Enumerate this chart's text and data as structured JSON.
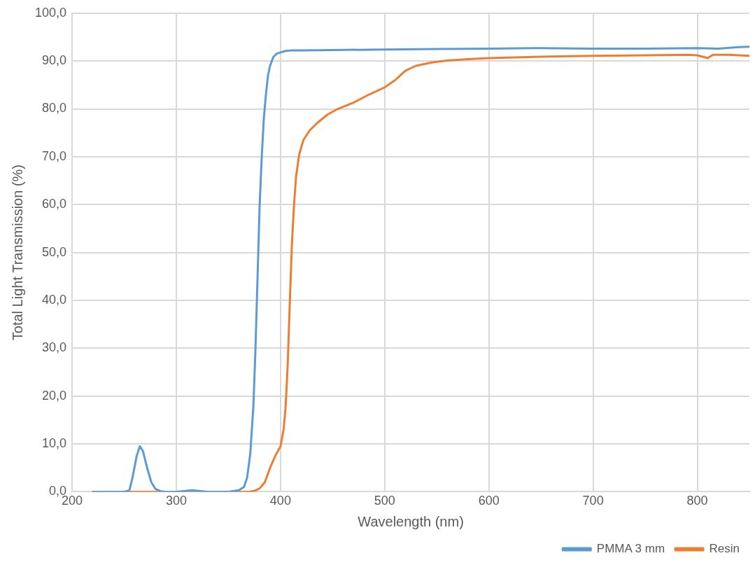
{
  "chart_data": {
    "type": "line",
    "xlabel": "Wavelength (nm)",
    "ylabel": "Total Light Transmission (%)",
    "xlim": [
      200,
      850
    ],
    "xticks": [
      200,
      300,
      400,
      500,
      600,
      700,
      800
    ],
    "ylim": [
      0,
      100
    ],
    "yticks": [
      {
        "value": 0,
        "label": "0,0"
      },
      {
        "value": 10,
        "label": "10,0"
      },
      {
        "value": 20,
        "label": "20,0"
      },
      {
        "value": 30,
        "label": "30,0"
      },
      {
        "value": 40,
        "label": "40,0"
      },
      {
        "value": 50,
        "label": "50,0"
      },
      {
        "value": 60,
        "label": "60,0"
      },
      {
        "value": 70,
        "label": "70,0"
      },
      {
        "value": 80,
        "label": "80,0"
      },
      {
        "value": 90,
        "label": "90,0"
      },
      {
        "value": 100,
        "label": "100,0"
      }
    ],
    "grid": true,
    "legend": "bottom right",
    "marker": "none",
    "line_style": "solid",
    "series": [
      {
        "name": "PMMA 3 mm",
        "color": "#5b9bd5",
        "x": [
          220,
          250,
          255,
          258,
          262,
          265,
          268,
          272,
          276,
          280,
          285,
          290,
          300,
          310,
          315,
          320,
          330,
          340,
          350,
          360,
          365,
          368,
          371,
          374,
          376,
          378,
          380,
          382,
          384,
          386,
          388,
          390,
          393,
          396,
          400,
          405,
          410,
          420,
          450,
          500,
          550,
          600,
          650,
          700,
          750,
          800,
          820,
          840,
          850
        ],
        "values": [
          0,
          0,
          0.3,
          3,
          7.5,
          9.5,
          8.5,
          5,
          2,
          0.6,
          0.1,
          0,
          0,
          0.2,
          0.3,
          0.2,
          0,
          0,
          0,
          0.3,
          1,
          3,
          8,
          18,
          30,
          45,
          60,
          70,
          78,
          83,
          87,
          89,
          90.8,
          91.5,
          91.8,
          92.1,
          92.2,
          92.2,
          92.3,
          92.4,
          92.5,
          92.6,
          92.7,
          92.6,
          92.6,
          92.7,
          92.6,
          92.9,
          93
        ]
      },
      {
        "name": "Resin",
        "color": "#ed7d31",
        "x": [
          220,
          300,
          370,
          375,
          380,
          385,
          390,
          395,
          400,
          403,
          405,
          407,
          409,
          411,
          413,
          415,
          418,
          422,
          428,
          435,
          445,
          455,
          470,
          485,
          500,
          510,
          520,
          530,
          545,
          560,
          580,
          600,
          650,
          700,
          750,
          790,
          800,
          805,
          810,
          815,
          830,
          850
        ],
        "values": [
          0,
          0,
          0,
          0.2,
          0.7,
          2,
          5,
          7.5,
          9.5,
          13,
          18,
          27,
          40,
          52,
          60,
          66,
          70.5,
          73.5,
          75.5,
          77,
          78.8,
          80,
          81.3,
          83,
          84.5,
          86,
          88,
          89,
          89.7,
          90.1,
          90.4,
          90.6,
          90.9,
          91.1,
          91.2,
          91.3,
          91.2,
          90.9,
          90.6,
          91.3,
          91.3,
          91.1
        ]
      }
    ]
  }
}
